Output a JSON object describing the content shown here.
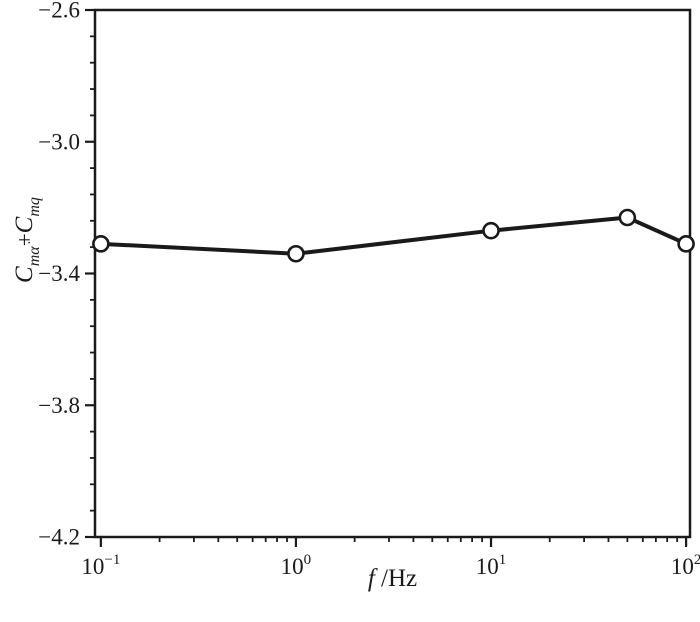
{
  "chart_data": {
    "type": "line",
    "title": "",
    "xlabel": {
      "italic_part": "f",
      "plain_part": " /Hz"
    },
    "ylabel": {
      "c1": "C",
      "sub1": "mα̇",
      "plus": "+",
      "c2": "C",
      "sub2": "mq"
    },
    "x_scale": "log",
    "x": [
      0.1,
      1,
      10,
      50,
      100
    ],
    "y": [
      -3.31,
      -3.34,
      -3.27,
      -3.23,
      -3.31
    ],
    "xlim_log": [
      -1.03,
      2.02
    ],
    "ylim": [
      -4.2,
      -2.6
    ],
    "x_ticks": {
      "base": "10",
      "exponent_values": [
        -1,
        0,
        1,
        2
      ],
      "exponent_labels": [
        "−1",
        "0",
        "1",
        "2"
      ]
    },
    "y_ticks": {
      "values": [
        -2.6,
        -3.0,
        -3.4,
        -3.8,
        -4.2
      ],
      "labels": [
        "−2.6",
        "−3.0",
        "−3.4",
        "−3.8",
        "−4.2"
      ],
      "minor_step": 0.08
    },
    "grid": false,
    "legend": false,
    "marker": "open-circle",
    "line_color": "#1a1a1a",
    "marker_fill": "#ffffff",
    "frame_color": "#1a1a1a",
    "background": "#ffffff"
  }
}
